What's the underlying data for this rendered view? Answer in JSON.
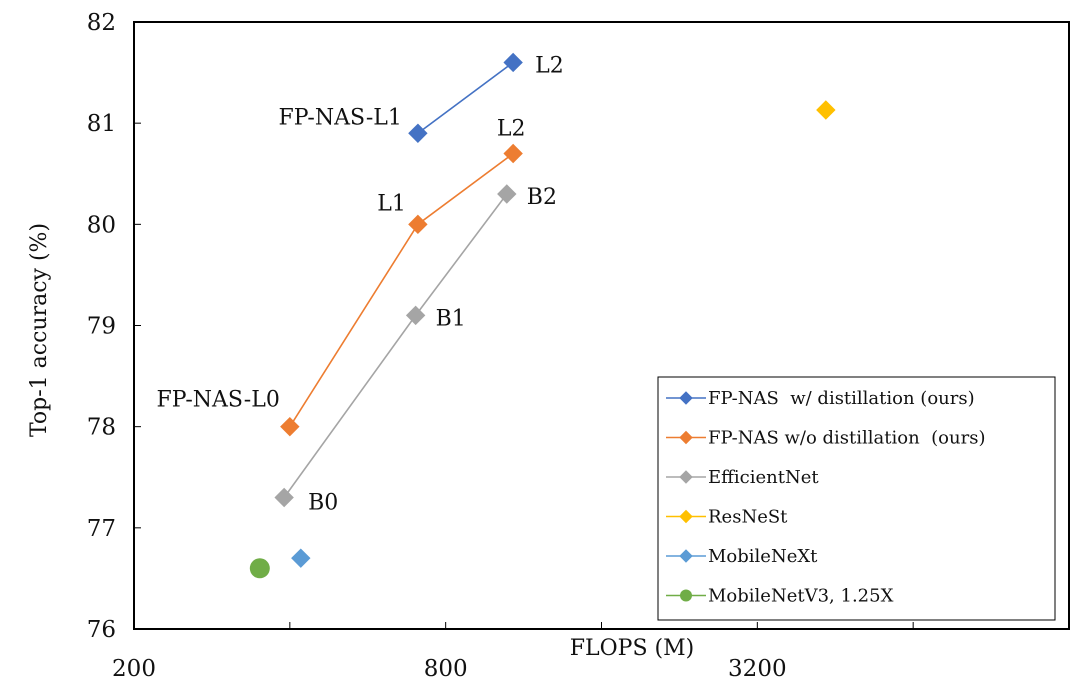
{
  "chart_data": {
    "type": "scatter",
    "xlabel": "FLOPS (M)",
    "ylabel": "Top-1 accuracy (%)",
    "x_scale": "log2",
    "xlim": [
      200,
      12800
    ],
    "ylim": [
      76,
      82
    ],
    "x_ticks": [
      200,
      800,
      3200
    ],
    "x_tick_labels": [
      "200",
      "800",
      "3200"
    ],
    "y_ticks": [
      76,
      77,
      78,
      79,
      80,
      81,
      82
    ],
    "y_tick_labels": [
      "76",
      "77",
      "78",
      "79",
      "80",
      "81",
      "82"
    ],
    "legend_position": "bottom-right",
    "series": [
      {
        "name": "FP-NAS  w/ distillation (ours)",
        "color": "#4472C4",
        "marker": "diamond",
        "line": true,
        "points": [
          {
            "x": 707,
            "y": 80.9,
            "label": "FP-NAS-L1"
          },
          {
            "x": 1080,
            "y": 81.6,
            "label": "L2"
          }
        ]
      },
      {
        "name": "FP-NAS w/o distillation  (ours)",
        "color": "#ED7D31",
        "marker": "diamond",
        "line": true,
        "points": [
          {
            "x": 400,
            "y": 78.0,
            "label": "FP-NAS-L0"
          },
          {
            "x": 707,
            "y": 80.0,
            "label": "L1"
          },
          {
            "x": 1080,
            "y": 80.7,
            "label": "L2"
          }
        ]
      },
      {
        "name": "EfficientNet",
        "color": "#A5A5A5",
        "marker": "diamond",
        "line": true,
        "points": [
          {
            "x": 390,
            "y": 77.3,
            "label": "B0"
          },
          {
            "x": 700,
            "y": 79.1,
            "label": "B1"
          },
          {
            "x": 1050,
            "y": 80.3,
            "label": "B2"
          }
        ]
      },
      {
        "name": "ResNeSt",
        "color": "#FFC000",
        "marker": "diamond",
        "line": false,
        "points": [
          {
            "x": 4340,
            "y": 81.13,
            "label": ""
          }
        ]
      },
      {
        "name": "MobileNeXt",
        "color": "#5B9BD5",
        "marker": "diamond",
        "line": false,
        "points": [
          {
            "x": 420,
            "y": 76.7,
            "label": ""
          }
        ]
      },
      {
        "name": "MobileNetV3, 1.25X",
        "color": "#70AD47",
        "marker": "circle",
        "line": false,
        "points": [
          {
            "x": 350,
            "y": 76.6,
            "label": ""
          }
        ]
      }
    ]
  }
}
